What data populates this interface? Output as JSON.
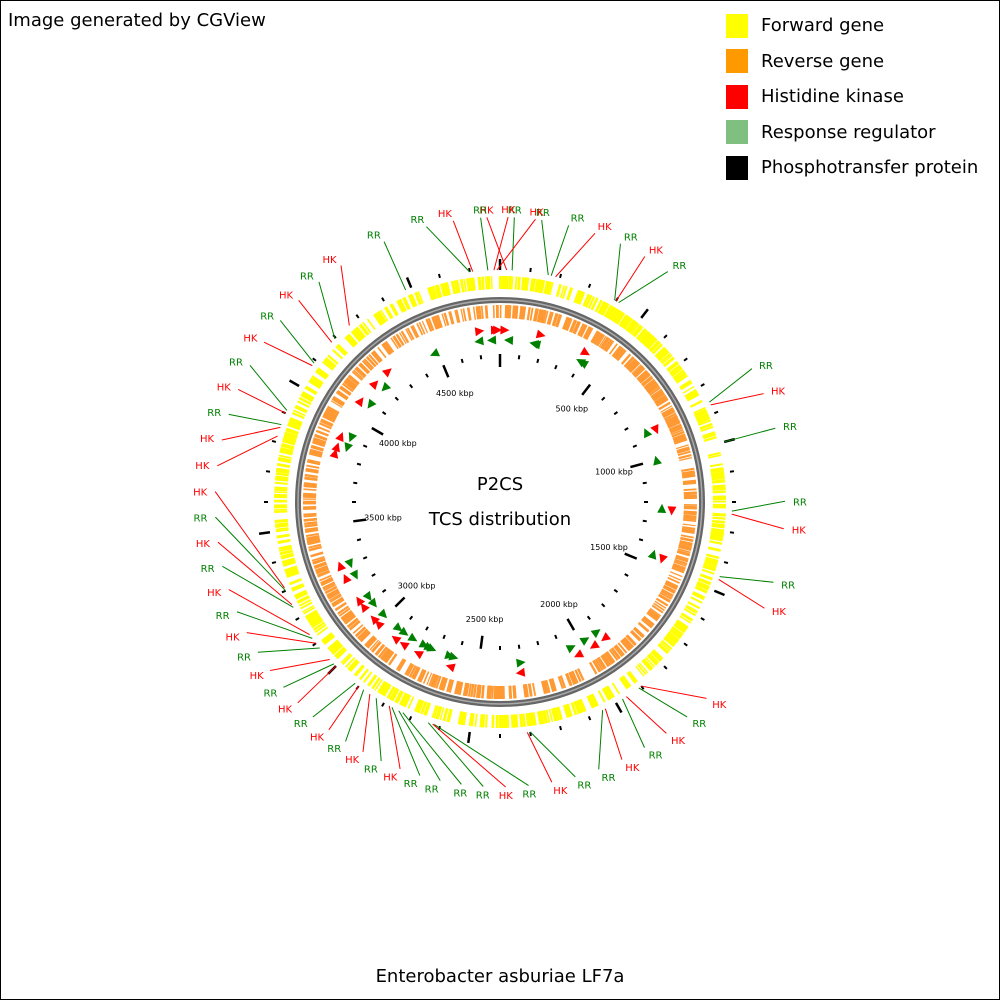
{
  "credit": "Image generated by CGView",
  "caption": "Enterobacter asburiae LF7a",
  "center_title": "P2CS",
  "center_subtitle": "TCS distribution",
  "legend": [
    {
      "label": "Forward gene",
      "color": "#ffff00"
    },
    {
      "label": "Reverse gene",
      "color": "#ff9900"
    },
    {
      "label": "Histidine kinase",
      "color": "#ff0000"
    },
    {
      "label": "Response regulator",
      "color": "#7fbf7f"
    },
    {
      "label": "Phosphotransfer protein",
      "color": "#000000"
    }
  ],
  "colors": {
    "forward": "#ffff00",
    "reverse": "#ff9933",
    "hk": "#ff0000",
    "rr": "#008000",
    "backbone": "#666666"
  },
  "genome_length_kbp": 4800,
  "tick_labels": [
    "500 kbp",
    "1000 kbp",
    "1500 kbp",
    "2000 kbp",
    "2500 kbp",
    "3000 kbp",
    "3500 kbp",
    "4000 kbp",
    "4500 kbp"
  ],
  "features": [
    {
      "type": "HK",
      "pos_kbp": 22
    },
    {
      "type": "RR",
      "pos_kbp": 40
    },
    {
      "type": "RR",
      "pos_kbp": 160
    },
    {
      "type": "RR",
      "pos_kbp": 170
    },
    {
      "type": "HK",
      "pos_kbp": 185
    },
    {
      "type": "RR",
      "pos_kbp": 395
    },
    {
      "type": "HK",
      "pos_kbp": 400
    },
    {
      "type": "RR",
      "pos_kbp": 410
    },
    {
      "type": "RR",
      "pos_kbp": 860
    },
    {
      "type": "HK",
      "pos_kbp": 870
    },
    {
      "type": "RR",
      "pos_kbp": 1000
    },
    {
      "type": "RR",
      "pos_kbp": 1230
    },
    {
      "type": "HK",
      "pos_kbp": 1240
    },
    {
      "type": "RR",
      "pos_kbp": 1450
    },
    {
      "type": "HK",
      "pos_kbp": 1460
    },
    {
      "type": "HK",
      "pos_kbp": 1900
    },
    {
      "type": "RR",
      "pos_kbp": 1910
    },
    {
      "type": "HK",
      "pos_kbp": 1960
    },
    {
      "type": "RR",
      "pos_kbp": 1975
    },
    {
      "type": "HK",
      "pos_kbp": 2040
    },
    {
      "type": "RR",
      "pos_kbp": 2050
    },
    {
      "type": "RR",
      "pos_kbp": 2300
    },
    {
      "type": "HK",
      "pos_kbp": 2310
    },
    {
      "type": "RR",
      "pos_kbp": 2620
    },
    {
      "type": "HK",
      "pos_kbp": 2625
    },
    {
      "type": "RR",
      "pos_kbp": 2640
    },
    {
      "type": "RR",
      "pos_kbp": 2730
    },
    {
      "type": "RR",
      "pos_kbp": 2745
    },
    {
      "type": "RR",
      "pos_kbp": 2770
    },
    {
      "type": "HK",
      "pos_kbp": 2780
    },
    {
      "type": "RR",
      "pos_kbp": 2830
    },
    {
      "type": "HK",
      "pos_kbp": 2855
    },
    {
      "type": "RR",
      "pos_kbp": 2880
    },
    {
      "type": "HK",
      "pos_kbp": 2900
    },
    {
      "type": "RR",
      "pos_kbp": 2915
    },
    {
      "type": "HK",
      "pos_kbp": 3000
    },
    {
      "type": "RR",
      "pos_kbp": 3010
    },
    {
      "type": "HK",
      "pos_kbp": 3030
    },
    {
      "type": "RR",
      "pos_kbp": 3080
    },
    {
      "type": "HK",
      "pos_kbp": 3100
    },
    {
      "type": "RR",
      "pos_kbp": 3120
    },
    {
      "type": "HK",
      "pos_kbp": 3135
    },
    {
      "type": "RR",
      "pos_kbp": 3240
    },
    {
      "type": "HK",
      "pos_kbp": 3250
    },
    {
      "type": "RR",
      "pos_kbp": 3300
    },
    {
      "type": "HK",
      "pos_kbp": 3310
    },
    {
      "type": "HK",
      "pos_kbp": 3820
    },
    {
      "type": "HK",
      "pos_kbp": 3850
    },
    {
      "type": "RR",
      "pos_kbp": 3860
    },
    {
      "type": "HK",
      "pos_kbp": 3900
    },
    {
      "type": "RR",
      "pos_kbp": 3910
    },
    {
      "type": "HK",
      "pos_kbp": 4080
    },
    {
      "type": "RR",
      "pos_kbp": 4090
    },
    {
      "type": "HK",
      "pos_kbp": 4180
    },
    {
      "type": "RR",
      "pos_kbp": 4195
    },
    {
      "type": "HK",
      "pos_kbp": 4260
    },
    {
      "type": "RR",
      "pos_kbp": 4480
    },
    {
      "type": "RR",
      "pos_kbp": 4700
    },
    {
      "type": "HK",
      "pos_kbp": 4710
    },
    {
      "type": "RR",
      "pos_kbp": 4760
    },
    {
      "type": "HK",
      "pos_kbp": 4780
    },
    {
      "type": "HK",
      "pos_kbp": 4790
    }
  ]
}
